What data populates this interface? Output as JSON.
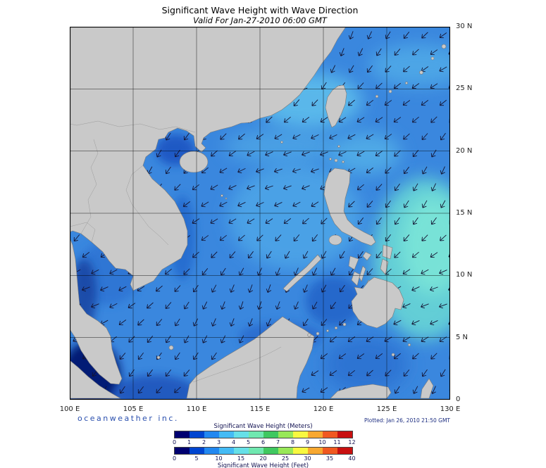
{
  "header": {
    "title": "Significant Wave Height with Wave Direction",
    "subtitle": "Valid For Jan-27-2010 06:00 GMT"
  },
  "axes": {
    "x_ticks": [
      "100 E",
      "105 E",
      "110 E",
      "115 E",
      "120 E",
      "125 E",
      "130 E"
    ],
    "y_ticks": [
      "30 N",
      "25 N",
      "20 N",
      "15 N",
      "10 N",
      "5 N",
      "0"
    ]
  },
  "footer": {
    "branding": "oceanweather inc.",
    "plotted": "Plotted: Jan 26, 2010 21:50 GMT"
  },
  "legend": {
    "meters_label": "Significant Wave Height (Meters)",
    "feet_label": "Significant Wave Height (Feet)",
    "meters_ticks": [
      "0",
      "1",
      "2",
      "3",
      "4",
      "5",
      "6",
      "7",
      "8",
      "9",
      "10",
      "11",
      "12"
    ],
    "feet_ticks": [
      "0",
      "5",
      "10",
      "15",
      "20",
      "25",
      "30",
      "35",
      "40"
    ],
    "colors": [
      "#000070",
      "#0045d0",
      "#2288f0",
      "#44bbf5",
      "#66e0e8",
      "#70e8b0",
      "#40c860",
      "#98e858",
      "#f8f840",
      "#f8a830",
      "#f05820",
      "#c81010"
    ]
  },
  "map": {
    "ocean_color": "#3a87de",
    "land_color": "#c9c9c9",
    "arrow_color": "#141432",
    "grid_color": "#000000"
  }
}
